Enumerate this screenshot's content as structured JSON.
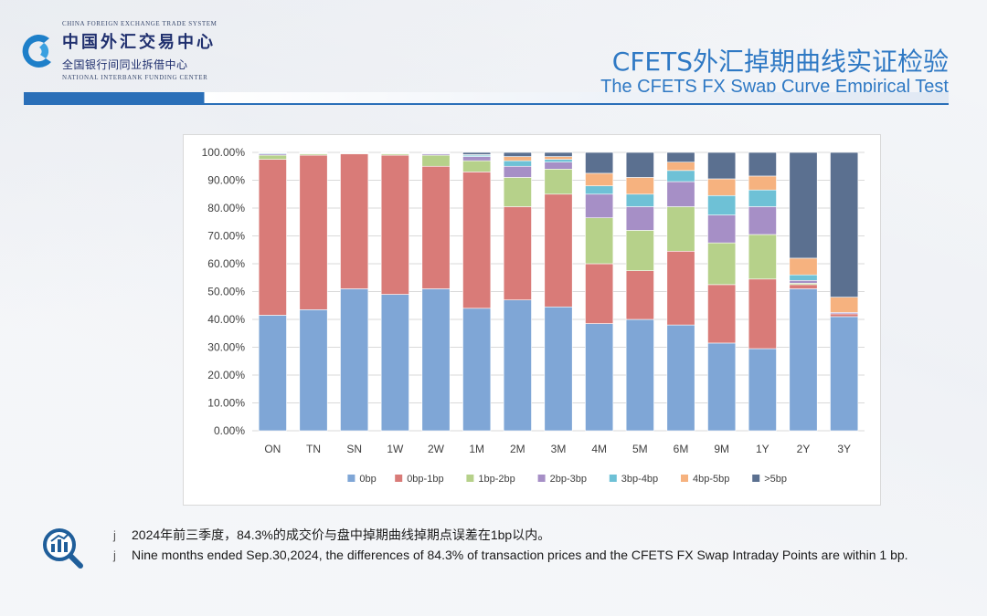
{
  "header": {
    "logo": {
      "en_top": "CHINA FOREIGN EXCHANGE TRADE SYSTEM",
      "cn_main": "中国外汇交易中心",
      "cn_sub": "全国银行间同业拆借中心",
      "en_bottom": "NATIONAL INTERBANK FUNDING CENTER"
    },
    "title_cn": "CFETS外汇掉期曲线实证检验",
    "title_en": "The CFETS FX Swap Curve Empirical Test"
  },
  "colors": {
    "accent": "#2f79c4",
    "header_bar": "#2a6fb8"
  },
  "chart_data": {
    "type": "bar",
    "stacked": true,
    "title": "",
    "xlabel": "",
    "ylabel": "",
    "ylim": [
      0,
      100
    ],
    "yticks": [
      "0.00%",
      "10.00%",
      "20.00%",
      "30.00%",
      "40.00%",
      "50.00%",
      "60.00%",
      "70.00%",
      "80.00%",
      "90.00%",
      "100.00%"
    ],
    "grid": true,
    "legend_position": "bottom",
    "categories": [
      "ON",
      "TN",
      "SN",
      "1W",
      "2W",
      "1M",
      "2M",
      "3M",
      "4M",
      "5M",
      "6M",
      "9M",
      "1Y",
      "2Y",
      "3Y"
    ],
    "series": [
      {
        "name": "0bp",
        "color": "#7fa6d6",
        "values": [
          41.5,
          43.5,
          51,
          49,
          51,
          44,
          47,
          44.5,
          38.5,
          40,
          38,
          31.5,
          29.5,
          51,
          41
        ]
      },
      {
        "name": "0bp-1bp",
        "color": "#d97b78",
        "values": [
          56,
          55.5,
          48.5,
          50,
          44,
          49,
          33.5,
          40.5,
          21.5,
          17.5,
          26.5,
          21,
          25,
          1.5,
          1
        ]
      },
      {
        "name": "1bp-2bp",
        "color": "#b6d18a",
        "values": [
          1.5,
          0.5,
          0.2,
          0.5,
          4,
          4,
          10.5,
          9,
          16.5,
          14.5,
          16,
          15,
          16,
          0.5,
          0
        ]
      },
      {
        "name": "2bp-3bp",
        "color": "#a68fc6",
        "values": [
          0.5,
          0.2,
          0.1,
          0.2,
          0.5,
          1.5,
          4,
          2.5,
          8.5,
          8.5,
          9,
          10,
          10,
          1,
          0.5
        ]
      },
      {
        "name": "3bp-4bp",
        "color": "#6ec1d6",
        "values": [
          0.3,
          0.1,
          0.1,
          0.1,
          0.2,
          0.5,
          2,
          1,
          3,
          4.5,
          4,
          7,
          6,
          2,
          0
        ]
      },
      {
        "name": "4bp-5bp",
        "color": "#f6b27f",
        "values": [
          0.1,
          0.1,
          0,
          0.1,
          0.1,
          0.2,
          1.5,
          1,
          4.5,
          6,
          3,
          6,
          5,
          6,
          5.5
        ]
      },
      {
        "name": ">5bp",
        "color": "#5b7090",
        "values": [
          0.1,
          0.1,
          0.1,
          0.1,
          0.2,
          0.8,
          1.5,
          1.5,
          7.5,
          9,
          3.5,
          9.5,
          8.5,
          38,
          52
        ]
      }
    ]
  },
  "notes": [
    {
      "bullet": "j",
      "text": "2024年前三季度，84.3%的成交价与盘中掉期曲线掉期点误差在1bp以内。"
    },
    {
      "bullet": "j",
      "text": "Nine months ended Sep.30,2024, the differences of 84.3% of transaction prices and the CFETS FX Swap Intraday Points are within 1 bp."
    }
  ]
}
